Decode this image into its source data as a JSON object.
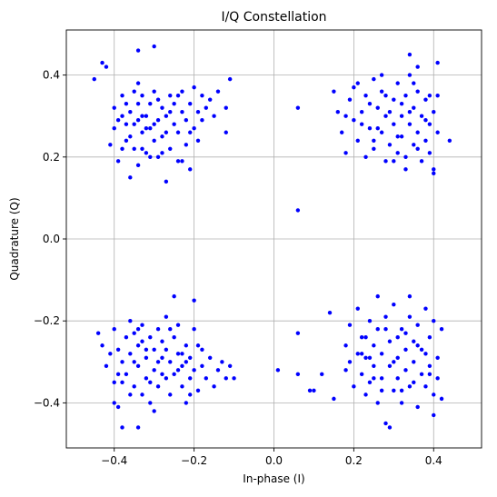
{
  "chart_data": {
    "type": "scatter",
    "title": "I/Q Constellation",
    "xlabel": "In-phase (I)",
    "ylabel": "Quadrature (Q)",
    "xlim": [
      -0.52,
      0.52
    ],
    "ylim": [
      -0.51,
      0.51
    ],
    "xticks": [
      -0.4,
      -0.2,
      0.0,
      0.2,
      0.4
    ],
    "yticks": [
      -0.4,
      -0.2,
      0.0,
      0.2,
      0.4
    ],
    "xtick_labels": [
      "−0.4",
      "−0.2",
      "0.0",
      "0.2",
      "0.4"
    ],
    "ytick_labels": [
      "−0.4",
      "−0.2",
      "0.0",
      "0.2",
      "0.4"
    ],
    "grid": true,
    "marker_color": "#0000ff",
    "series": [
      {
        "points": [
          [
            -0.45,
            0.39
          ],
          [
            -0.43,
            0.43
          ],
          [
            -0.42,
            0.42
          ],
          [
            -0.34,
            0.46
          ],
          [
            -0.3,
            0.47
          ],
          [
            -0.11,
            0.39
          ],
          [
            -0.12,
            0.32
          ],
          [
            -0.12,
            0.26
          ],
          [
            -0.4,
            0.32
          ],
          [
            -0.4,
            0.27
          ],
          [
            -0.39,
            0.19
          ],
          [
            -0.38,
            0.35
          ],
          [
            -0.38,
            0.3
          ],
          [
            -0.38,
            0.22
          ],
          [
            -0.37,
            0.28
          ],
          [
            -0.37,
            0.33
          ],
          [
            -0.36,
            0.25
          ],
          [
            -0.36,
            0.31
          ],
          [
            -0.35,
            0.36
          ],
          [
            -0.35,
            0.22
          ],
          [
            -0.34,
            0.29
          ],
          [
            -0.34,
            0.18
          ],
          [
            -0.34,
            0.33
          ],
          [
            -0.33,
            0.26
          ],
          [
            -0.33,
            0.35
          ],
          [
            -0.32,
            0.3
          ],
          [
            -0.32,
            0.21
          ],
          [
            -0.31,
            0.27
          ],
          [
            -0.31,
            0.33
          ],
          [
            -0.3,
            0.24
          ],
          [
            -0.3,
            0.36
          ],
          [
            -0.29,
            0.29
          ],
          [
            -0.29,
            0.2
          ],
          [
            -0.28,
            0.32
          ],
          [
            -0.28,
            0.25
          ],
          [
            -0.27,
            0.14
          ],
          [
            -0.27,
            0.3
          ],
          [
            -0.26,
            0.35
          ],
          [
            -0.26,
            0.22
          ],
          [
            -0.25,
            0.28
          ],
          [
            -0.25,
            0.33
          ],
          [
            -0.24,
            0.19
          ],
          [
            -0.24,
            0.26
          ],
          [
            -0.23,
            0.31
          ],
          [
            -0.23,
            0.36
          ],
          [
            -0.22,
            0.23
          ],
          [
            -0.22,
            0.29
          ],
          [
            -0.21,
            0.17
          ],
          [
            -0.21,
            0.33
          ],
          [
            -0.2,
            0.27
          ],
          [
            -0.2,
            0.37
          ],
          [
            -0.19,
            0.31
          ],
          [
            -0.19,
            0.24
          ],
          [
            -0.18,
            0.35
          ],
          [
            -0.18,
            0.29
          ],
          [
            -0.17,
            0.32
          ],
          [
            -0.16,
            0.34
          ],
          [
            -0.15,
            0.3
          ],
          [
            -0.14,
            0.36
          ],
          [
            -0.36,
            0.15
          ],
          [
            -0.35,
            0.28
          ],
          [
            -0.33,
            0.3
          ],
          [
            -0.31,
            0.2
          ],
          [
            -0.29,
            0.34
          ],
          [
            -0.27,
            0.26
          ],
          [
            -0.41,
            0.23
          ],
          [
            -0.39,
            0.29
          ],
          [
            -0.37,
            0.24
          ],
          [
            -0.33,
            0.22
          ],
          [
            -0.3,
            0.28
          ],
          [
            -0.26,
            0.31
          ],
          [
            -0.24,
            0.35
          ],
          [
            -0.34,
            0.38
          ],
          [
            -0.32,
            0.27
          ],
          [
            -0.28,
            0.21
          ],
          [
            -0.23,
            0.19
          ],
          [
            -0.21,
            0.26
          ],
          [
            0.06,
            0.32
          ],
          [
            0.06,
            0.07
          ],
          [
            0.34,
            0.45
          ],
          [
            0.36,
            0.42
          ],
          [
            0.41,
            0.43
          ],
          [
            0.44,
            0.24
          ],
          [
            0.15,
            0.36
          ],
          [
            0.16,
            0.31
          ],
          [
            0.17,
            0.26
          ],
          [
            0.18,
            0.21
          ],
          [
            0.19,
            0.34
          ],
          [
            0.2,
            0.29
          ],
          [
            0.21,
            0.38
          ],
          [
            0.21,
            0.24
          ],
          [
            0.22,
            0.31
          ],
          [
            0.23,
            0.2
          ],
          [
            0.23,
            0.35
          ],
          [
            0.24,
            0.27
          ],
          [
            0.25,
            0.39
          ],
          [
            0.25,
            0.22
          ],
          [
            0.26,
            0.32
          ],
          [
            0.27,
            0.26
          ],
          [
            0.27,
            0.36
          ],
          [
            0.28,
            0.19
          ],
          [
            0.28,
            0.3
          ],
          [
            0.29,
            0.23
          ],
          [
            0.3,
            0.34
          ],
          [
            0.3,
            0.28
          ],
          [
            0.31,
            0.38
          ],
          [
            0.31,
            0.21
          ],
          [
            0.32,
            0.3
          ],
          [
            0.32,
            0.25
          ],
          [
            0.33,
            0.35
          ],
          [
            0.33,
            0.17
          ],
          [
            0.34,
            0.28
          ],
          [
            0.34,
            0.4
          ],
          [
            0.35,
            0.23
          ],
          [
            0.35,
            0.32
          ],
          [
            0.36,
            0.26
          ],
          [
            0.36,
            0.36
          ],
          [
            0.37,
            0.19
          ],
          [
            0.37,
            0.3
          ],
          [
            0.38,
            0.24
          ],
          [
            0.38,
            0.34
          ],
          [
            0.39,
            0.28
          ],
          [
            0.39,
            0.21
          ],
          [
            0.4,
            0.31
          ],
          [
            0.4,
            0.17
          ],
          [
            0.41,
            0.26
          ],
          [
            0.41,
            0.35
          ],
          [
            0.4,
            0.16
          ],
          [
            0.33,
            0.2
          ],
          [
            0.31,
            0.25
          ],
          [
            0.29,
            0.31
          ],
          [
            0.26,
            0.27
          ],
          [
            0.24,
            0.33
          ],
          [
            0.22,
            0.28
          ],
          [
            0.2,
            0.37
          ],
          [
            0.18,
            0.3
          ],
          [
            0.36,
            0.22
          ],
          [
            0.38,
            0.29
          ],
          [
            0.35,
            0.38
          ],
          [
            0.32,
            0.33
          ],
          [
            0.28,
            0.35
          ],
          [
            0.25,
            0.24
          ],
          [
            0.3,
            0.19
          ],
          [
            0.34,
            0.31
          ],
          [
            0.39,
            0.35
          ],
          [
            0.27,
            0.4
          ],
          [
            -0.44,
            -0.23
          ],
          [
            -0.43,
            -0.26
          ],
          [
            -0.42,
            -0.31
          ],
          [
            -0.4,
            -0.35
          ],
          [
            -0.4,
            -0.4
          ],
          [
            -0.39,
            -0.41
          ],
          [
            -0.38,
            -0.46
          ],
          [
            -0.34,
            -0.46
          ],
          [
            -0.3,
            -0.42
          ],
          [
            -0.25,
            -0.14
          ],
          [
            -0.17,
            -0.34
          ],
          [
            -0.21,
            -0.38
          ],
          [
            -0.22,
            -0.4
          ],
          [
            -0.12,
            -0.34
          ],
          [
            -0.11,
            -0.31
          ],
          [
            -0.1,
            -0.34
          ],
          [
            -0.4,
            -0.22
          ],
          [
            -0.39,
            -0.27
          ],
          [
            -0.38,
            -0.3
          ],
          [
            -0.37,
            -0.24
          ],
          [
            -0.37,
            -0.33
          ],
          [
            -0.36,
            -0.2
          ],
          [
            -0.36,
            -0.28
          ],
          [
            -0.35,
            -0.36
          ],
          [
            -0.35,
            -0.23
          ],
          [
            -0.34,
            -0.31
          ],
          [
            -0.34,
            -0.26
          ],
          [
            -0.33,
            -0.38
          ],
          [
            -0.33,
            -0.21
          ],
          [
            -0.32,
            -0.29
          ],
          [
            -0.32,
            -0.34
          ],
          [
            -0.31,
            -0.24
          ],
          [
            -0.31,
            -0.4
          ],
          [
            -0.3,
            -0.27
          ],
          [
            -0.3,
            -0.32
          ],
          [
            -0.29,
            -0.22
          ],
          [
            -0.29,
            -0.36
          ],
          [
            -0.28,
            -0.29
          ],
          [
            -0.28,
            -0.25
          ],
          [
            -0.27,
            -0.34
          ],
          [
            -0.27,
            -0.19
          ],
          [
            -0.26,
            -0.3
          ],
          [
            -0.26,
            -0.38
          ],
          [
            -0.25,
            -0.24
          ],
          [
            -0.25,
            -0.33
          ],
          [
            -0.24,
            -0.28
          ],
          [
            -0.24,
            -0.21
          ],
          [
            -0.23,
            -0.36
          ],
          [
            -0.23,
            -0.31
          ],
          [
            -0.22,
            -0.26
          ],
          [
            -0.21,
            -0.34
          ],
          [
            -0.21,
            -0.29
          ],
          [
            -0.2,
            -0.22
          ],
          [
            -0.2,
            -0.32
          ],
          [
            -0.19,
            -0.37
          ],
          [
            -0.18,
            -0.27
          ],
          [
            -0.18,
            -0.31
          ],
          [
            -0.16,
            -0.29
          ],
          [
            -0.15,
            -0.36
          ],
          [
            -0.14,
            -0.32
          ],
          [
            -0.13,
            -0.3
          ],
          [
            -0.2,
            -0.15
          ],
          [
            -0.35,
            -0.3
          ],
          [
            -0.33,
            -0.25
          ],
          [
            -0.31,
            -0.35
          ],
          [
            -0.29,
            -0.3
          ],
          [
            -0.27,
            -0.27
          ],
          [
            -0.24,
            -0.32
          ],
          [
            -0.22,
            -0.3
          ],
          [
            -0.38,
            -0.35
          ],
          [
            -0.36,
            -0.38
          ],
          [
            -0.34,
            -0.22
          ],
          [
            -0.32,
            -0.27
          ],
          [
            -0.28,
            -0.33
          ],
          [
            -0.26,
            -0.22
          ],
          [
            -0.23,
            -0.28
          ],
          [
            -0.19,
            -0.26
          ],
          [
            -0.41,
            -0.28
          ],
          [
            -0.39,
            -0.33
          ],
          [
            0.01,
            -0.32
          ],
          [
            0.06,
            -0.23
          ],
          [
            0.06,
            -0.33
          ],
          [
            0.09,
            -0.37
          ],
          [
            0.1,
            -0.37
          ],
          [
            0.12,
            -0.33
          ],
          [
            0.15,
            -0.39
          ],
          [
            0.14,
            -0.18
          ],
          [
            0.18,
            -0.26
          ],
          [
            0.18,
            -0.32
          ],
          [
            0.19,
            -0.21
          ],
          [
            0.2,
            -0.36
          ],
          [
            0.21,
            -0.28
          ],
          [
            0.21,
            -0.17
          ],
          [
            0.22,
            -0.33
          ],
          [
            0.22,
            -0.24
          ],
          [
            0.23,
            -0.38
          ],
          [
            0.23,
            -0.29
          ],
          [
            0.24,
            -0.2
          ],
          [
            0.24,
            -0.35
          ],
          [
            0.25,
            -0.26
          ],
          [
            0.25,
            -0.31
          ],
          [
            0.26,
            -0.4
          ],
          [
            0.26,
            -0.22
          ],
          [
            0.27,
            -0.34
          ],
          [
            0.27,
            -0.28
          ],
          [
            0.28,
            -0.45
          ],
          [
            0.28,
            -0.19
          ],
          [
            0.29,
            -0.31
          ],
          [
            0.29,
            -0.25
          ],
          [
            0.3,
            -0.37
          ],
          [
            0.3,
            -0.16
          ],
          [
            0.31,
            -0.29
          ],
          [
            0.31,
            -0.34
          ],
          [
            0.32,
            -0.22
          ],
          [
            0.32,
            -0.4
          ],
          [
            0.33,
            -0.27
          ],
          [
            0.33,
            -0.32
          ],
          [
            0.34,
            -0.19
          ],
          [
            0.34,
            -0.36
          ],
          [
            0.35,
            -0.25
          ],
          [
            0.35,
            -0.3
          ],
          [
            0.36,
            -0.41
          ],
          [
            0.36,
            -0.21
          ],
          [
            0.37,
            -0.33
          ],
          [
            0.37,
            -0.27
          ],
          [
            0.38,
            -0.17
          ],
          [
            0.38,
            -0.36
          ],
          [
            0.39,
            -0.24
          ],
          [
            0.39,
            -0.31
          ],
          [
            0.4,
            -0.38
          ],
          [
            0.4,
            -0.2
          ],
          [
            0.41,
            -0.29
          ],
          [
            0.41,
            -0.34
          ],
          [
            0.42,
            -0.22
          ],
          [
            0.42,
            -0.39
          ],
          [
            0.4,
            -0.43
          ],
          [
            0.29,
            -0.46
          ],
          [
            0.34,
            -0.14
          ],
          [
            0.26,
            -0.14
          ],
          [
            0.19,
            -0.3
          ],
          [
            0.23,
            -0.24
          ],
          [
            0.27,
            -0.37
          ],
          [
            0.31,
            -0.24
          ],
          [
            0.35,
            -0.35
          ],
          [
            0.38,
            -0.28
          ],
          [
            0.33,
            -0.23
          ],
          [
            0.3,
            -0.3
          ],
          [
            0.25,
            -0.34
          ],
          [
            0.22,
            -0.28
          ],
          [
            0.36,
            -0.26
          ],
          [
            0.39,
            -0.33
          ],
          [
            0.28,
            -0.22
          ],
          [
            0.32,
            -0.37
          ],
          [
            0.24,
            -0.29
          ]
        ]
      }
    ]
  }
}
